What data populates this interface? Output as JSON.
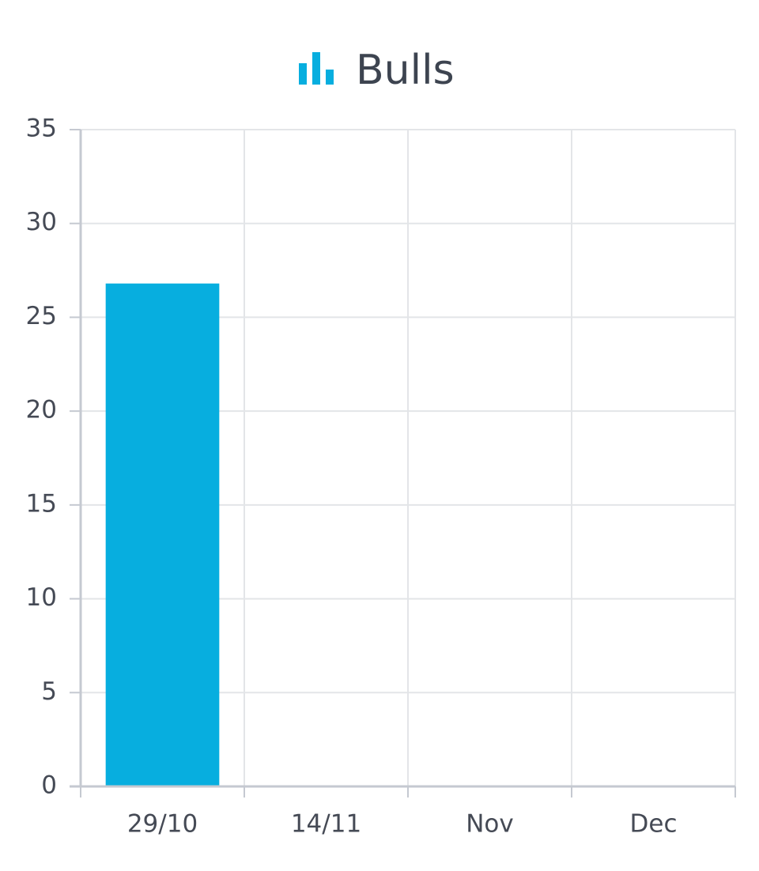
{
  "chart_data": {
    "type": "bar",
    "categories": [
      "29/10",
      "14/11",
      "Nov",
      "Dec"
    ],
    "series": [
      {
        "name": "Bulls",
        "color": "#07aedf",
        "values": [
          26.8,
          null,
          null,
          null
        ]
      }
    ],
    "ylim": [
      0,
      35
    ],
    "yticks": [
      0,
      5,
      10,
      15,
      20,
      25,
      30,
      35
    ],
    "grid": true,
    "legend": "top"
  }
}
